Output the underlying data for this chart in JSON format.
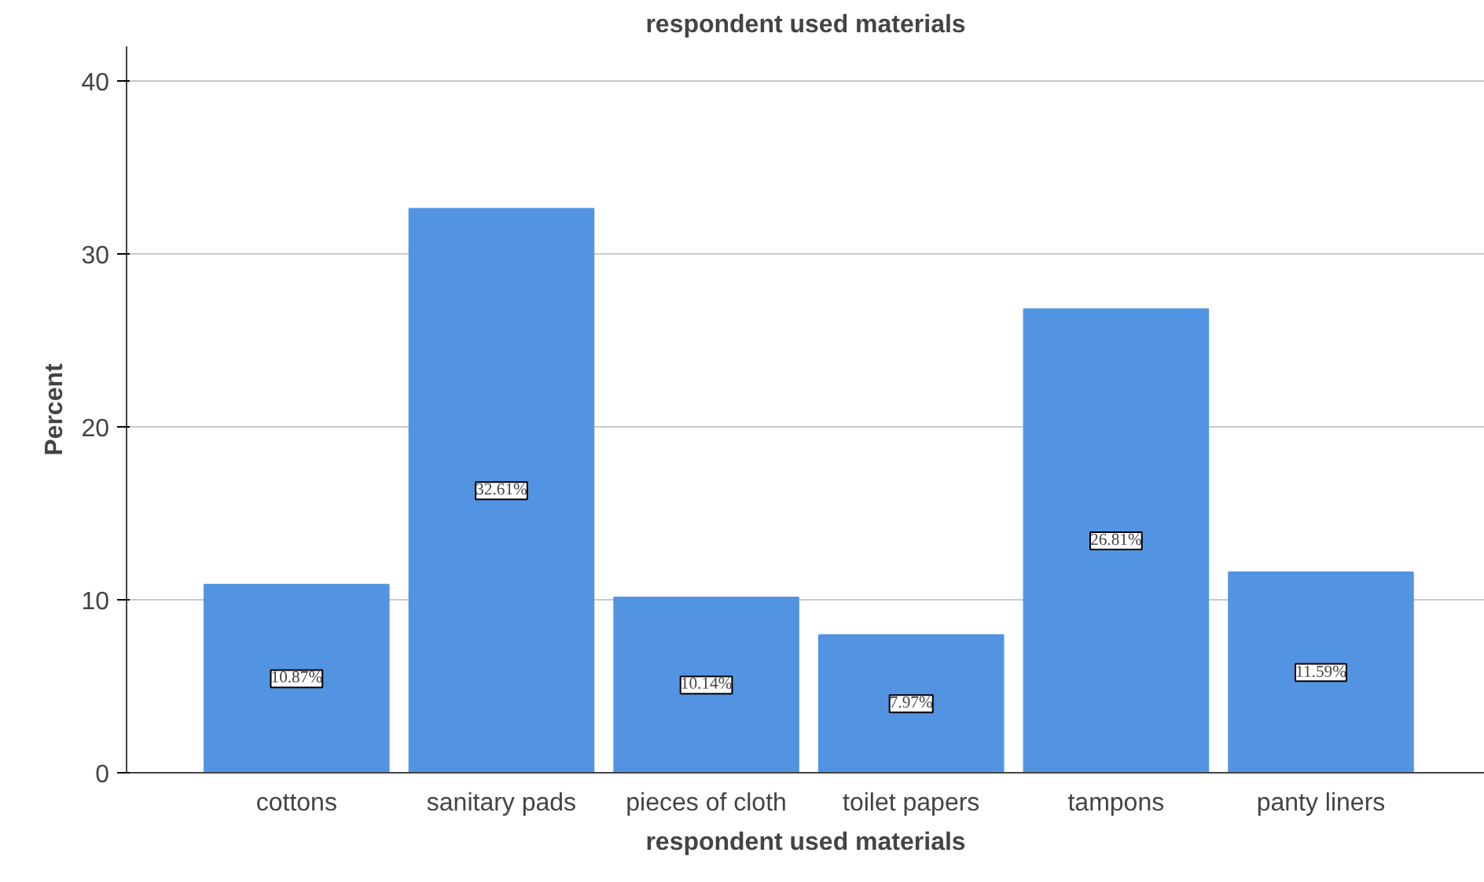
{
  "chart_data": {
    "type": "bar",
    "title": "respondent used materials",
    "xlabel": "respondent used materials",
    "ylabel": "Percent",
    "categories": [
      "cottons",
      "sanitary pads",
      "pieces of cloth",
      "toilet papers",
      "tampons",
      "panty liners"
    ],
    "values": [
      10.87,
      32.61,
      10.14,
      7.97,
      26.81,
      11.59
    ],
    "value_labels": [
      "10.87%",
      "32.61%",
      "10.14%",
      "7.97%",
      "26.81%",
      "11.59%"
    ],
    "color": "#5294e2",
    "ylim": [
      0,
      42
    ],
    "yticks": [
      0,
      10,
      20,
      30,
      40
    ],
    "grid": "y"
  }
}
